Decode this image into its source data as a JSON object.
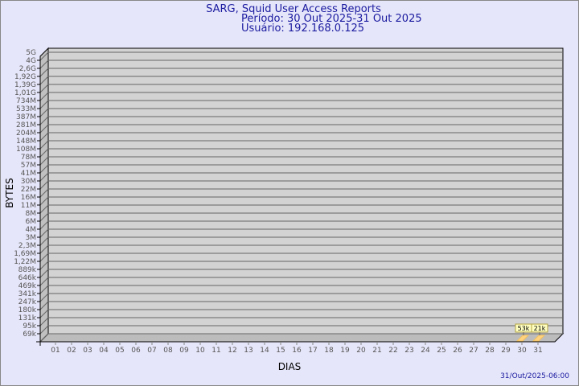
{
  "chart_data": {
    "type": "bar",
    "title": "SARG, Squid User Access Reports",
    "subtitle_lines": [
      "Período: 30 Out 2025-31 Out 2025",
      "Usuário: 192.168.0.125"
    ],
    "xlabel": "DIAS",
    "ylabel": "BYTES",
    "y_scale": "log",
    "y_tick_labels": [
      "5G",
      "4G",
      "2,6G",
      "1,92G",
      "1,39G",
      "1,01G",
      "734M",
      "533M",
      "387M",
      "281M",
      "204M",
      "148M",
      "108M",
      "78M",
      "57M",
      "41M",
      "30M",
      "22M",
      "16M",
      "11M",
      "8M",
      "6M",
      "4M",
      "3M",
      "2,3M",
      "1,69M",
      "1,22M",
      "889k",
      "646k",
      "469k",
      "341k",
      "247k",
      "180k",
      "131k",
      "95k",
      "69k"
    ],
    "categories": [
      "01",
      "02",
      "03",
      "04",
      "05",
      "06",
      "07",
      "08",
      "09",
      "10",
      "11",
      "12",
      "13",
      "14",
      "15",
      "16",
      "17",
      "18",
      "19",
      "20",
      "21",
      "22",
      "23",
      "24",
      "25",
      "26",
      "27",
      "28",
      "29",
      "30",
      "31"
    ],
    "values": [
      null,
      null,
      null,
      null,
      null,
      null,
      null,
      null,
      null,
      null,
      null,
      null,
      null,
      null,
      null,
      null,
      null,
      null,
      null,
      null,
      null,
      null,
      null,
      null,
      null,
      null,
      null,
      null,
      null,
      53000,
      21000
    ],
    "data_labels": {
      "30": "53k",
      "31": "21k"
    },
    "grid": true,
    "colors": {
      "background": "#e6e6fa",
      "plot": "#d3d3d3",
      "bar": "#ffd27f",
      "label_bg": "#ffffc0",
      "text": "#1a1aa0"
    }
  },
  "footer": {
    "timestamp": "31/Out/2025-06:00"
  }
}
